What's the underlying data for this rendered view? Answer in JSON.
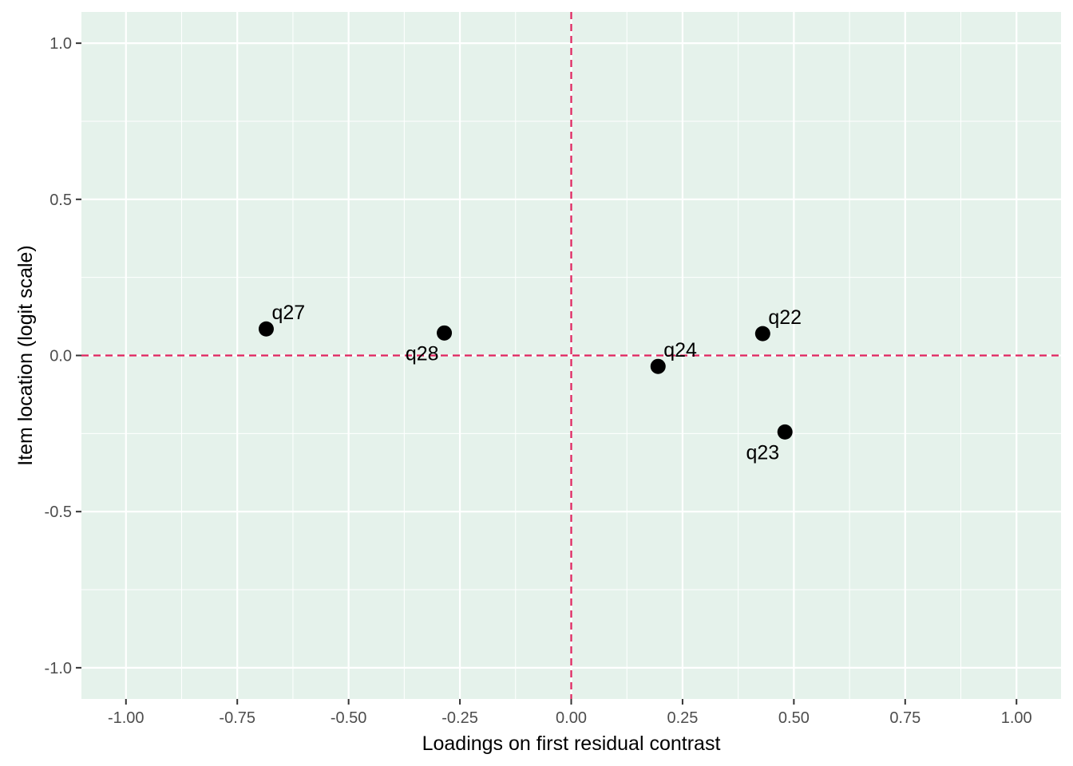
{
  "chart_data": {
    "type": "scatter",
    "title": "",
    "xlabel": "Loadings on first residual contrast",
    "ylabel": "Item location (logit scale)",
    "xlim": [
      -1.1,
      1.1
    ],
    "ylim": [
      -1.1,
      1.1
    ],
    "x_ticks": [
      -1.0,
      -0.75,
      -0.5,
      -0.25,
      0.0,
      0.25,
      0.5,
      0.75,
      1.0
    ],
    "x_tick_labels": [
      "-1.00",
      "-0.75",
      "-0.50",
      "-0.25",
      "0.00",
      "0.25",
      "0.50",
      "0.75",
      "1.00"
    ],
    "y_ticks": [
      1.0,
      0.5,
      0.0,
      -0.5,
      -1.0
    ],
    "y_tick_labels": [
      "1.0",
      "0.5",
      "0.0",
      "-0.5",
      "-1.0"
    ],
    "grid": true,
    "legend": "none",
    "reference_lines": {
      "x": 0,
      "y": 0,
      "style": "dashed",
      "color": "#e0245e"
    },
    "points": [
      {
        "label": "q22",
        "x": 0.43,
        "y": 0.07,
        "label_side": "right"
      },
      {
        "label": "q23",
        "x": 0.48,
        "y": -0.245,
        "label_side": "left"
      },
      {
        "label": "q24",
        "x": 0.195,
        "y": -0.035,
        "label_side": "right"
      },
      {
        "label": "q27",
        "x": -0.685,
        "y": 0.085,
        "label_side": "right"
      },
      {
        "label": "q28",
        "x": -0.285,
        "y": 0.072,
        "label_side": "left"
      }
    ],
    "colors": {
      "panel_background": "#e5f2eb",
      "grid": "#ffffff",
      "point": "#000000",
      "reference_line": "#e0245e",
      "tick_text": "#4d4d4d"
    }
  }
}
